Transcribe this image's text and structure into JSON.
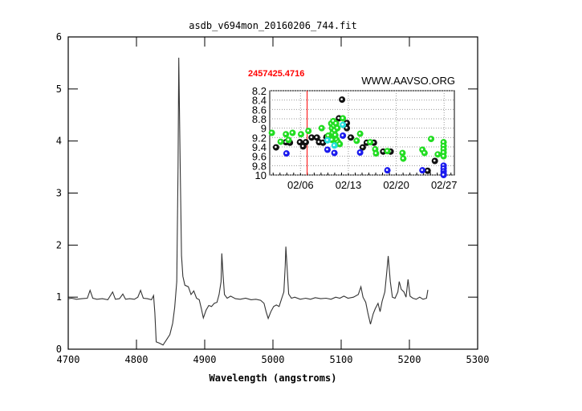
{
  "chart_data": [
    {
      "type": "line",
      "title": "asdb_v694mon_20160206_744.fit",
      "xlabel": "Wavelength (angstroms)",
      "ylabel": "",
      "xlim": [
        4700,
        5300
      ],
      "ylim": [
        0,
        6
      ],
      "xticks": [
        4700,
        4800,
        4900,
        5000,
        5100,
        5200,
        5300
      ],
      "yticks": [
        0,
        1,
        2,
        3,
        4,
        5,
        6
      ],
      "grid": false,
      "color": "#333333",
      "series": [
        {
          "points": [
            [
              4700,
              0.97
            ],
            [
              4705,
              0.98
            ],
            [
              4712,
              0.96
            ],
            [
              4720,
              0.97
            ],
            [
              4728,
              0.98
            ],
            [
              4732,
              1.13
            ],
            [
              4736,
              0.98
            ],
            [
              4742,
              0.96
            ],
            [
              4750,
              0.97
            ],
            [
              4758,
              0.95
            ],
            [
              4765,
              1.1
            ],
            [
              4769,
              0.96
            ],
            [
              4775,
              0.97
            ],
            [
              4780,
              1.06
            ],
            [
              4784,
              0.96
            ],
            [
              4790,
              0.97
            ],
            [
              4797,
              0.96
            ],
            [
              4802,
              1.0
            ],
            [
              4806,
              1.13
            ],
            [
              4810,
              0.98
            ],
            [
              4816,
              0.97
            ],
            [
              4822,
              0.95
            ],
            [
              4825,
              1.03
            ],
            [
              4827,
              0.7
            ],
            [
              4829,
              0.14
            ],
            [
              4833,
              0.12
            ],
            [
              4839,
              0.08
            ],
            [
              4844,
              0.18
            ],
            [
              4849,
              0.28
            ],
            [
              4853,
              0.5
            ],
            [
              4856,
              0.8
            ],
            [
              4859,
              1.3
            ],
            [
              4861,
              3.5
            ],
            [
              4862,
              5.6
            ],
            [
              4864,
              3.6
            ],
            [
              4866,
              1.8
            ],
            [
              4868,
              1.4
            ],
            [
              4871,
              1.23
            ],
            [
              4876,
              1.2
            ],
            [
              4880,
              1.05
            ],
            [
              4884,
              1.12
            ],
            [
              4888,
              0.98
            ],
            [
              4892,
              0.95
            ],
            [
              4895,
              0.78
            ],
            [
              4898,
              0.6
            ],
            [
              4902,
              0.75
            ],
            [
              4906,
              0.84
            ],
            [
              4910,
              0.82
            ],
            [
              4914,
              0.88
            ],
            [
              4918,
              0.9
            ],
            [
              4921,
              1.05
            ],
            [
              4924,
              1.3
            ],
            [
              4925,
              1.84
            ],
            [
              4927,
              1.4
            ],
            [
              4929,
              1.05
            ],
            [
              4933,
              0.98
            ],
            [
              4938,
              1.02
            ],
            [
              4945,
              0.97
            ],
            [
              4952,
              0.96
            ],
            [
              4960,
              0.98
            ],
            [
              4968,
              0.95
            ],
            [
              4975,
              0.96
            ],
            [
              4982,
              0.94
            ],
            [
              4987,
              0.88
            ],
            [
              4990,
              0.72
            ],
            [
              4993,
              0.59
            ],
            [
              4997,
              0.72
            ],
            [
              5001,
              0.82
            ],
            [
              5005,
              0.85
            ],
            [
              5009,
              0.82
            ],
            [
              5013,
              0.98
            ],
            [
              5016,
              1.1
            ],
            [
              5018,
              1.6
            ],
            [
              5019,
              1.97
            ],
            [
              5021,
              1.5
            ],
            [
              5023,
              1.06
            ],
            [
              5027,
              0.98
            ],
            [
              5032,
              1.0
            ],
            [
              5040,
              0.96
            ],
            [
              5048,
              0.98
            ],
            [
              5055,
              0.96
            ],
            [
              5062,
              0.99
            ],
            [
              5070,
              0.97
            ],
            [
              5078,
              0.98
            ],
            [
              5085,
              0.96
            ],
            [
              5092,
              1.0
            ],
            [
              5098,
              0.98
            ],
            [
              5104,
              1.02
            ],
            [
              5110,
              0.98
            ],
            [
              5118,
              1.0
            ],
            [
              5125,
              1.05
            ],
            [
              5129,
              1.2
            ],
            [
              5132,
              1.0
            ],
            [
              5136,
              0.9
            ],
            [
              5139,
              0.7
            ],
            [
              5143,
              0.48
            ],
            [
              5147,
              0.68
            ],
            [
              5150,
              0.78
            ],
            [
              5154,
              0.88
            ],
            [
              5157,
              0.72
            ],
            [
              5160,
              0.92
            ],
            [
              5164,
              1.1
            ],
            [
              5167,
              1.5
            ],
            [
              5169,
              1.79
            ],
            [
              5172,
              1.3
            ],
            [
              5175,
              1.0
            ],
            [
              5179,
              0.98
            ],
            [
              5183,
              1.1
            ],
            [
              5185,
              1.3
            ],
            [
              5188,
              1.15
            ],
            [
              5192,
              1.1
            ],
            [
              5195,
              1.0
            ],
            [
              5198,
              1.34
            ],
            [
              5201,
              1.02
            ],
            [
              5205,
              0.98
            ],
            [
              5210,
              0.96
            ],
            [
              5215,
              1.0
            ],
            [
              5220,
              0.96
            ],
            [
              5225,
              0.98
            ],
            [
              5227,
              1.14
            ]
          ]
        }
      ]
    },
    {
      "type": "scatter",
      "title": "WWW.AAVSO.ORG",
      "marker_label": "2457425.4716",
      "marker_color": "#ff0000",
      "marker_x": 6.97,
      "xlabel": "",
      "ylabel": "",
      "xlim": [
        1.5,
        28.5
      ],
      "ylim": [
        10,
        8.2
      ],
      "y_inverted": true,
      "xticks": [
        6,
        13,
        20,
        27
      ],
      "xtick_labels": [
        "02/06",
        "02/13",
        "02/20",
        "02/27"
      ],
      "yticks": [
        8.2,
        8.4,
        8.6,
        8.8,
        9,
        9.2,
        9.4,
        9.6,
        9.8,
        10
      ],
      "ytick_labels": [
        "8.2",
        "8.4",
        "8.6",
        "8.8",
        "9",
        "9.2",
        "9.4",
        "9.6",
        "9.8",
        "10"
      ],
      "grid": true,
      "colors": {
        "black": "#111111",
        "green": "#22dd22",
        "blue": "#1a1aee",
        "cyan": "#22dddd"
      },
      "series": [
        {
          "color_key": "black",
          "points": [
            [
              2.43,
              9.41
            ],
            [
              3.87,
              9.3
            ],
            [
              4.45,
              9.31
            ],
            [
              5.92,
              9.3
            ],
            [
              6.39,
              9.39
            ],
            [
              6.78,
              9.3
            ],
            [
              7.63,
              9.2
            ],
            [
              8.4,
              9.2
            ],
            [
              8.71,
              9.3
            ],
            [
              9.29,
              9.31
            ],
            [
              9.8,
              9.19
            ],
            [
              11.62,
              8.79
            ],
            [
              12.78,
              8.89
            ],
            [
              12.78,
              9.0
            ],
            [
              12.08,
              8.39
            ],
            [
              13.36,
              9.2
            ],
            [
              15.11,
              9.41
            ],
            [
              15.69,
              9.31
            ],
            [
              16.74,
              9.31
            ],
            [
              18.09,
              9.5
            ],
            [
              19.18,
              9.5
            ],
            [
              24.6,
              9.91
            ],
            [
              25.65,
              9.7
            ]
          ]
        },
        {
          "color_key": "green",
          "points": [
            [
              1.81,
              9.1
            ],
            [
              3.1,
              9.29
            ],
            [
              3.87,
              9.13
            ],
            [
              4.26,
              9.25
            ],
            [
              4.84,
              9.1
            ],
            [
              6.08,
              9.13
            ],
            [
              7.16,
              9.06
            ],
            [
              9.1,
              9.0
            ],
            [
              10.07,
              9.16
            ],
            [
              10.5,
              8.9
            ],
            [
              10.6,
              9.0
            ],
            [
              10.7,
              9.1
            ],
            [
              10.8,
              8.85
            ],
            [
              10.9,
              8.95
            ],
            [
              10.9,
              9.2
            ],
            [
              11.0,
              9.05
            ],
            [
              11.1,
              9.15
            ],
            [
              11.2,
              8.9
            ],
            [
              11.3,
              9.25
            ],
            [
              11.4,
              9.0
            ],
            [
              11.5,
              9.3
            ],
            [
              10.6,
              9.25
            ],
            [
              11.74,
              9.34
            ],
            [
              12.2,
              8.79
            ],
            [
              14.22,
              9.27
            ],
            [
              14.72,
              9.12
            ],
            [
              16.19,
              9.3
            ],
            [
              16.93,
              9.45
            ],
            [
              17.05,
              9.54
            ],
            [
              18.71,
              9.49
            ],
            [
              20.92,
              9.53
            ],
            [
              21.03,
              9.65
            ],
            [
              23.83,
              9.46
            ],
            [
              24.14,
              9.53
            ],
            [
              25.1,
              9.23
            ],
            [
              26.08,
              9.56
            ],
            [
              26.93,
              9.3
            ],
            [
              26.93,
              9.38
            ],
            [
              26.93,
              9.45
            ],
            [
              26.93,
              9.52
            ],
            [
              26.93,
              9.6
            ]
          ]
        },
        {
          "color_key": "blue",
          "points": [
            [
              3.95,
              9.54
            ],
            [
              9.95,
              9.46
            ],
            [
              10.96,
              9.53
            ],
            [
              12.2,
              9.16
            ],
            [
              14.72,
              9.52
            ],
            [
              18.71,
              9.9
            ],
            [
              23.83,
              9.9
            ],
            [
              26.93,
              9.8
            ],
            [
              26.93,
              9.86
            ],
            [
              26.93,
              9.92
            ],
            [
              26.93,
              9.97
            ],
            [
              26.93,
              10.0
            ]
          ]
        },
        {
          "color_key": "cyan",
          "points": [
            [
              9.95,
              9.26
            ],
            [
              10.96,
              9.37
            ],
            [
              12.2,
              8.93
            ]
          ]
        }
      ]
    }
  ]
}
